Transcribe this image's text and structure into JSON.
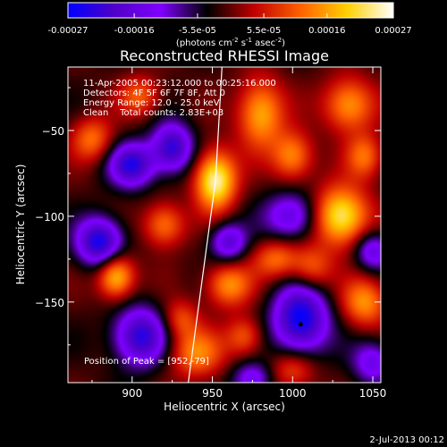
{
  "chart_data": {
    "type": "heatmap",
    "title": "Reconstructed RHESSI Image",
    "xlabel": "Heliocentric X (arcsec)",
    "ylabel": "Heliocentric Y (arcsec)",
    "xlim": [
      860,
      1055
    ],
    "ylim": [
      -197,
      -13
    ],
    "x_ticks": [
      900,
      950,
      1000,
      1050
    ],
    "y_ticks": [
      -50,
      -100,
      -150
    ],
    "colorbar": {
      "min": -0.00027,
      "max": 0.00027,
      "tick_labels": [
        "-0.00027",
        "-0.00016",
        "-5.5e-05",
        "5.5e-05",
        "0.00016",
        "0.00027"
      ],
      "tick_values": [
        -0.00027,
        -0.00016,
        -5.5e-05,
        5.5e-05,
        0.00016,
        0.00027
      ],
      "unit_label": "(photons cm",
      "unit_parts": [
        "(photons cm",
        "-2",
        " s",
        "-1",
        " asec",
        "-2",
        ")"
      ],
      "colormap": [
        "#0000ff",
        "#5000c8",
        "#8000ff",
        "#000000",
        "#c00000",
        "#ff6000",
        "#ffd000",
        "#ffffff"
      ]
    },
    "annotations": [
      "11-Apr-2005 00:23:12.000 to 00:25:16.000",
      "Detectors: 4F 5F 6F 7F 8F, Att 0",
      "Energy Range: 12.0 - 25.0 keV",
      "Clean    Total counts: 2.83E+03"
    ],
    "peak_text": "Position of Peak = [952,-79]",
    "peak": [
      952,
      -79
    ],
    "marker": [
      1005,
      -163
    ],
    "limb_line": [
      [
        935,
        -197
      ],
      [
        952,
        -79
      ],
      [
        956,
        -13
      ]
    ],
    "sources": [
      {
        "x": 952,
        "y": -79,
        "sx": 9,
        "sy": 12,
        "a": 1.0
      },
      {
        "x": 1030,
        "y": -100,
        "sx": 12,
        "sy": 12,
        "a": 0.95
      },
      {
        "x": 980,
        "y": -40,
        "sx": 10,
        "sy": 14,
        "a": 0.7
      },
      {
        "x": 1000,
        "y": -65,
        "sx": 9,
        "sy": 10,
        "a": 0.6
      },
      {
        "x": 1035,
        "y": -35,
        "sx": 11,
        "sy": 11,
        "a": 0.65
      },
      {
        "x": 1045,
        "y": -150,
        "sx": 10,
        "sy": 10,
        "a": 0.6
      },
      {
        "x": 890,
        "y": -135,
        "sx": 8,
        "sy": 9,
        "a": 0.8
      },
      {
        "x": 875,
        "y": -55,
        "sx": 9,
        "sy": 9,
        "a": 0.5
      },
      {
        "x": 920,
        "y": -105,
        "sx": 9,
        "sy": 9,
        "a": 0.55
      },
      {
        "x": 960,
        "y": -140,
        "sx": 10,
        "sy": 9,
        "a": 0.6
      },
      {
        "x": 990,
        "y": -125,
        "sx": 10,
        "sy": 8,
        "a": 0.5
      },
      {
        "x": 1012,
        "y": -130,
        "sx": 9,
        "sy": 9,
        "a": 0.45
      },
      {
        "x": 940,
        "y": -180,
        "sx": 12,
        "sy": 10,
        "a": 0.55
      },
      {
        "x": 1000,
        "y": -190,
        "sx": 10,
        "sy": 8,
        "a": 0.4
      },
      {
        "x": 905,
        "y": -30,
        "sx": 9,
        "sy": 8,
        "a": 0.45
      },
      {
        "x": 970,
        "y": -170,
        "sx": 8,
        "sy": 8,
        "a": 0.45
      },
      {
        "x": 930,
        "y": -160,
        "sx": 8,
        "sy": 8,
        "a": 0.4
      },
      {
        "x": 1045,
        "y": -65,
        "sx": 8,
        "sy": 9,
        "a": 0.5
      },
      {
        "x": 900,
        "y": -70,
        "sx": 10,
        "sy": 9,
        "a": -0.8
      },
      {
        "x": 880,
        "y": -115,
        "sx": 10,
        "sy": 10,
        "a": -0.9
      },
      {
        "x": 925,
        "y": -60,
        "sx": 9,
        "sy": 10,
        "a": -0.8
      },
      {
        "x": 905,
        "y": -170,
        "sx": 12,
        "sy": 12,
        "a": -0.8
      },
      {
        "x": 1005,
        "y": -160,
        "sx": 12,
        "sy": 14,
        "a": -0.95
      },
      {
        "x": 1000,
        "y": -100,
        "sx": 12,
        "sy": 10,
        "a": -0.6
      },
      {
        "x": 960,
        "y": -115,
        "sx": 8,
        "sy": 8,
        "a": -0.6
      },
      {
        "x": 975,
        "y": -195,
        "sx": 9,
        "sy": 7,
        "a": -0.5
      },
      {
        "x": 1050,
        "y": -185,
        "sx": 9,
        "sy": 9,
        "a": -0.5
      },
      {
        "x": 1050,
        "y": -120,
        "sx": 8,
        "sy": 8,
        "a": -0.55
      }
    ]
  },
  "footer_date": "2-Jul-2013 00:12"
}
